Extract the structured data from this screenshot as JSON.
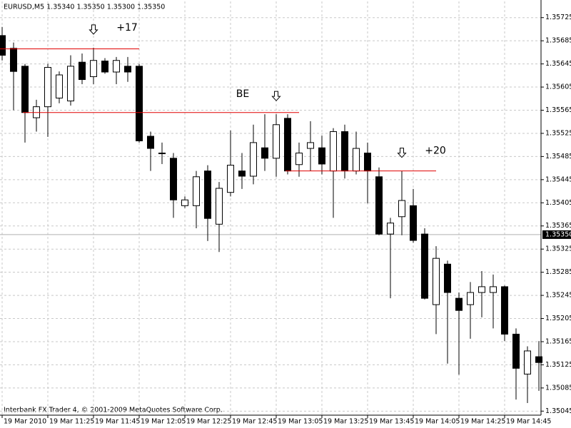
{
  "chart_data": {
    "type": "candlestick",
    "title": "EURUSD,M5  1.35340 1.35350 1.35300 1.35350",
    "footer": "Interbank FX Trader 4, © 2001-2009 MetaQuotes Software Corp.",
    "categories": [
      "19 Mar 2010",
      null,
      null,
      null,
      "19 Mar 11:25",
      null,
      null,
      null,
      "19 Mar 11:45",
      null,
      null,
      null,
      "19 Mar 12:05",
      null,
      null,
      null,
      "19 Mar 12:25",
      null,
      null,
      null,
      "19 Mar 12:45",
      null,
      null,
      null,
      "19 Mar 13:05",
      null,
      null,
      null,
      "19 Mar 13:25",
      null,
      null,
      null,
      "19 Mar 13:45",
      null,
      null,
      null,
      "19 Mar 14:05",
      null,
      null,
      null,
      "19 Mar 14:25",
      null,
      null,
      null,
      "19 Mar 14:45",
      null,
      null,
      null
    ],
    "open": [
      1.35694,
      1.35672,
      1.35641,
      1.35552,
      1.35571,
      1.35586,
      1.35581,
      1.35648,
      1.35623,
      1.3565,
      1.35631,
      1.35641,
      1.35641,
      1.3552,
      1.35491,
      1.35482,
      1.354,
      1.354,
      1.3546,
      1.35368,
      1.35423,
      1.3546,
      1.35451,
      1.355,
      1.35482,
      1.35551,
      1.35471,
      1.35499,
      1.355,
      1.3546,
      1.35528,
      1.3546,
      1.35491,
      1.3545,
      1.35351,
      1.35381,
      1.354,
      1.35351,
      1.35229,
      1.35299,
      1.3524,
      1.35229,
      1.3525,
      1.3525,
      1.3526,
      1.35178,
      1.35109,
      1.35139
    ],
    "high": [
      1.35709,
      1.35682,
      1.35645,
      1.35583,
      1.35645,
      1.35632,
      1.3566,
      1.35663,
      1.35673,
      1.35655,
      1.35657,
      1.35657,
      1.35645,
      1.35528,
      1.35509,
      1.35491,
      1.35416,
      1.3546,
      1.3547,
      1.35441,
      1.3553,
      1.35491,
      1.3554,
      1.35558,
      1.35558,
      1.35558,
      1.35509,
      1.35546,
      1.35521,
      1.35534,
      1.3554,
      1.35528,
      1.35509,
      1.35466,
      1.35379,
      1.3546,
      1.35429,
      1.35361,
      1.3533,
      1.35305,
      1.3525,
      1.35268,
      1.35287,
      1.35281,
      1.35262,
      1.35188,
      1.35157,
      1.35166
    ],
    "low": [
      1.35651,
      1.35565,
      1.35509,
      1.35528,
      1.35519,
      1.35577,
      1.35573,
      1.3561,
      1.3561,
      1.35628,
      1.3561,
      1.35614,
      1.35509,
      1.3546,
      1.35472,
      1.35379,
      1.35396,
      1.35361,
      1.35339,
      1.3532,
      1.35416,
      1.35429,
      1.35437,
      1.3546,
      1.3545,
      1.35454,
      1.3545,
      1.3546,
      1.35454,
      1.35379,
      1.35447,
      1.35454,
      1.35404,
      1.35349,
      1.3524,
      1.35349,
      1.35336,
      1.35238,
      1.35178,
      1.35127,
      1.35108,
      1.3517,
      1.35207,
      1.35188,
      1.35166,
      1.35065,
      1.35059,
      1.3508
    ],
    "close": [
      1.3566,
      1.35632,
      1.35561,
      1.35571,
      1.35639,
      1.35626,
      1.35641,
      1.35618,
      1.35651,
      1.35631,
      1.35651,
      1.35631,
      1.35512,
      1.35499,
      1.35491,
      1.3541,
      1.3541,
      1.3545,
      1.35378,
      1.3543,
      1.3547,
      1.35451,
      1.35509,
      1.35482,
      1.3554,
      1.3546,
      1.35491,
      1.35509,
      1.35472,
      1.35528,
      1.3546,
      1.35499,
      1.3546,
      1.35351,
      1.3537,
      1.35409,
      1.3534,
      1.3524,
      1.35309,
      1.3525,
      1.35219,
      1.3525,
      1.3526,
      1.3526,
      1.35178,
      1.35119,
      1.35149,
      1.35129
    ],
    "up_color": "#ffffff",
    "down_color": "#000000",
    "outline_color": "#000000",
    "ylim": [
      1.35038,
      1.35753
    ],
    "yticks": [
      1.35725,
      1.35685,
      1.35645,
      1.35605,
      1.35565,
      1.35525,
      1.35485,
      1.35445,
      1.35405,
      1.35365,
      1.35325,
      1.35285,
      1.35245,
      1.35205,
      1.35165,
      1.35125,
      1.35085,
      1.35045
    ],
    "current_price": {
      "value": 1.3535,
      "label": "1.35350"
    },
    "grid": true,
    "levels": [
      {
        "value": 1.35671,
        "from": 0,
        "to": 12,
        "arrow": 8,
        "label": "+17",
        "color": "#e00000"
      },
      {
        "value": 1.35561,
        "from": 2,
        "to": 26,
        "arrow": 24,
        "label": "BE",
        "color": "#e00000"
      },
      {
        "value": 1.3546,
        "from": 25,
        "to": 38,
        "arrow": 35,
        "label": "+20",
        "color": "#e00000"
      }
    ]
  }
}
